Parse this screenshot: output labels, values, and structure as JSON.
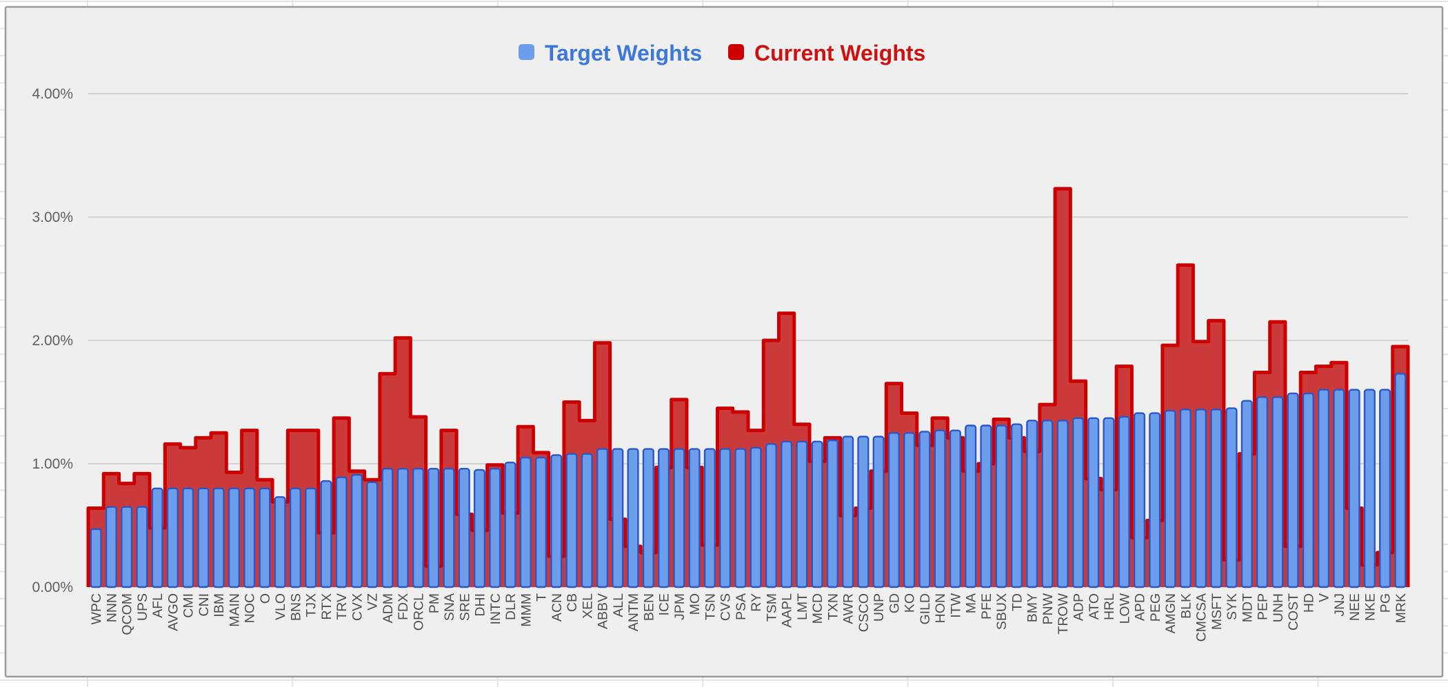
{
  "legend": {
    "target_label": "Target Weights",
    "current_label": "Current Weights"
  },
  "y_axis": {
    "ticks": [
      "0.00%",
      "1.00%",
      "2.00%",
      "3.00%",
      "4.00%"
    ],
    "tick_values": [
      0,
      1,
      2,
      3,
      4
    ],
    "max": 4
  },
  "colors": {
    "panel_bg": "#efefef",
    "panel_border": "#9a9a9a",
    "sheet_bg": "#ffffff",
    "sheet_gridline": "#e3e3e3",
    "plot_gridline": "#c9c9c9",
    "target_fill": "#6d9eeb",
    "target_stroke": "#2a57c8",
    "current_fill": "#cb3a3a",
    "current_stroke": "#cc0000",
    "legend_target_text": "#3c78d8",
    "legend_current_text": "#cc1111",
    "y_label_color": "#5f5f5f",
    "x_label_color": "#4d4d4d"
  },
  "chart_data": {
    "type": "bar",
    "title": "",
    "xlabel": "",
    "ylabel": "",
    "ylim": [
      0,
      4.0
    ],
    "grid": true,
    "legend_position": "top-center",
    "categories": [
      "WPC",
      "NNN",
      "QCOM",
      "UPS",
      "AFL",
      "AVGO",
      "CMI",
      "CNI",
      "IBM",
      "MAIN",
      "NOC",
      "O",
      "VLO",
      "BNS",
      "TJX",
      "RTX",
      "TRV",
      "CVX",
      "VZ",
      "ADM",
      "FDX",
      "ORCL",
      "PM",
      "SNA",
      "SRE",
      "DHI",
      "INTC",
      "DLR",
      "MMM",
      "T",
      "ACN",
      "CB",
      "XEL",
      "ABBV",
      "ALL",
      "ANTM",
      "BEN",
      "ICE",
      "JPM",
      "MO",
      "TSN",
      "CVS",
      "PSA",
      "RY",
      "TSM",
      "AAPL",
      "LMT",
      "MCD",
      "TXN",
      "AWR",
      "CSCO",
      "UNP",
      "GD",
      "KO",
      "GILD",
      "HON",
      "ITW",
      "MA",
      "PFE",
      "SBUX",
      "TD",
      "BMY",
      "PNW",
      "TROW",
      "ADP",
      "ATO",
      "HRL",
      "LOW",
      "APD",
      "PEG",
      "AMGN",
      "BLK",
      "CMCSA",
      "MSFT",
      "SYK",
      "MDT",
      "PEP",
      "UNH",
      "COST",
      "HD",
      "V",
      "JNJ",
      "NEE",
      "NKE",
      "PG",
      "MRK"
    ],
    "series": [
      {
        "name": "Target Weights",
        "render_as": "column",
        "unit": "%",
        "values": [
          0.47,
          0.65,
          0.65,
          0.65,
          0.8,
          0.8,
          0.8,
          0.8,
          0.8,
          0.8,
          0.8,
          0.8,
          0.73,
          0.8,
          0.8,
          0.86,
          0.89,
          0.91,
          0.85,
          0.96,
          0.96,
          0.96,
          0.96,
          0.96,
          0.96,
          0.95,
          0.96,
          1.01,
          1.05,
          1.05,
          1.07,
          1.08,
          1.08,
          1.12,
          1.12,
          1.12,
          1.12,
          1.12,
          1.12,
          1.12,
          1.12,
          1.12,
          1.12,
          1.13,
          1.16,
          1.18,
          1.18,
          1.18,
          1.19,
          1.22,
          1.22,
          1.22,
          1.25,
          1.25,
          1.26,
          1.27,
          1.27,
          1.31,
          1.31,
          1.31,
          1.32,
          1.35,
          1.35,
          1.35,
          1.37,
          1.37,
          1.37,
          1.38,
          1.41,
          1.41,
          1.43,
          1.44,
          1.44,
          1.44,
          1.45,
          1.51,
          1.54,
          1.54,
          1.57,
          1.57,
          1.6,
          1.6,
          1.6,
          1.6,
          1.6,
          1.73
        ]
      },
      {
        "name": "Current Weights",
        "render_as": "stepped-area",
        "unit": "%",
        "values": [
          0.64,
          0.92,
          0.84,
          0.92,
          0.48,
          1.16,
          1.13,
          1.21,
          1.25,
          0.93,
          1.27,
          0.87,
          0.69,
          1.27,
          1.27,
          0.44,
          1.37,
          0.94,
          0.87,
          1.73,
          2.02,
          1.38,
          0.17,
          1.27,
          0.59,
          0.46,
          0.99,
          0.6,
          1.3,
          1.09,
          0.25,
          1.5,
          1.35,
          1.98,
          0.55,
          0.33,
          0.28,
          0.97,
          1.52,
          0.97,
          0.34,
          1.45,
          1.42,
          1.27,
          2.0,
          2.22,
          1.32,
          1.02,
          1.21,
          0.58,
          0.64,
          0.94,
          1.65,
          1.41,
          1.15,
          1.37,
          1.21,
          0.94,
          1.0,
          1.36,
          1.21,
          1.1,
          1.48,
          3.23,
          1.67,
          0.88,
          0.79,
          1.79,
          0.4,
          0.54,
          1.96,
          2.61,
          1.99,
          2.16,
          0.22,
          1.08,
          1.74,
          2.15,
          0.33,
          1.74,
          1.79,
          1.82,
          0.64,
          0.18,
          0.28,
          1.95
        ]
      }
    ]
  }
}
